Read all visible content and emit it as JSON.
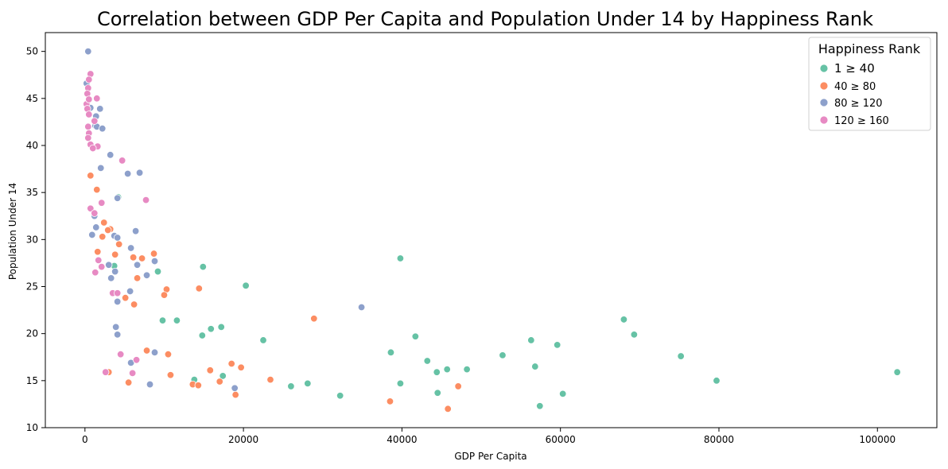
{
  "chart_data": {
    "type": "scatter",
    "title": "Correlation between GDP Per Capita and Population Under 14 by Happiness Rank",
    "xlabel": "GDP Per Capita",
    "ylabel": "Population Under 14",
    "xlim": [
      -5000,
      107500
    ],
    "ylim": [
      10,
      52
    ],
    "xticks": [
      0,
      20000,
      40000,
      60000,
      80000,
      100000
    ],
    "xtick_labels": [
      "0",
      "20000",
      "40000",
      "60000",
      "80000",
      "100000"
    ],
    "yticks": [
      10,
      15,
      20,
      25,
      30,
      35,
      40,
      45,
      50
    ],
    "ytick_labels": [
      "10",
      "15",
      "20",
      "25",
      "30",
      "35",
      "40",
      "45",
      "50"
    ],
    "grid": false,
    "legend": {
      "title": "Happiness Rank",
      "placement": "top-right"
    },
    "series": [
      {
        "name": "1 ≥ 40",
        "color": "#66c2a5",
        "points": [
          [
            102500,
            15.9
          ],
          [
            79700,
            15.0
          ],
          [
            75200,
            17.6
          ],
          [
            69300,
            19.9
          ],
          [
            68000,
            21.5
          ],
          [
            60300,
            13.6
          ],
          [
            59600,
            18.8
          ],
          [
            57400,
            12.3
          ],
          [
            56800,
            16.5
          ],
          [
            56300,
            19.3
          ],
          [
            52700,
            17.7
          ],
          [
            48200,
            16.2
          ],
          [
            45700,
            16.2
          ],
          [
            44500,
            13.7
          ],
          [
            44400,
            15.9
          ],
          [
            43200,
            17.1
          ],
          [
            41700,
            19.7
          ],
          [
            39800,
            28.0
          ],
          [
            39800,
            14.7
          ],
          [
            38600,
            18.0
          ],
          [
            32200,
            13.4
          ],
          [
            28100,
            14.7
          ],
          [
            26000,
            14.4
          ],
          [
            22500,
            19.3
          ],
          [
            20300,
            25.1
          ],
          [
            17200,
            20.7
          ],
          [
            17400,
            15.5
          ],
          [
            15900,
            20.5
          ],
          [
            14900,
            27.1
          ],
          [
            14800,
            19.8
          ],
          [
            13800,
            15.1
          ],
          [
            11600,
            21.4
          ],
          [
            9800,
            21.4
          ],
          [
            9200,
            26.6
          ],
          [
            4200,
            34.5
          ],
          [
            3700,
            27.2
          ]
        ]
      },
      {
        "name": "40 ≥ 80",
        "color": "#fc8d62",
        "points": [
          [
            700,
            36.8
          ],
          [
            1500,
            35.3
          ],
          [
            2400,
            31.8
          ],
          [
            3200,
            31.1
          ],
          [
            2900,
            31.0
          ],
          [
            2200,
            30.3
          ],
          [
            4300,
            29.5
          ],
          [
            1600,
            28.7
          ],
          [
            3800,
            28.4
          ],
          [
            8700,
            28.5
          ],
          [
            6100,
            28.1
          ],
          [
            7200,
            28.0
          ],
          [
            6600,
            25.9
          ],
          [
            14400,
            24.8
          ],
          [
            10300,
            24.7
          ],
          [
            10000,
            24.1
          ],
          [
            5100,
            23.8
          ],
          [
            6200,
            23.1
          ],
          [
            28900,
            21.6
          ],
          [
            7800,
            18.2
          ],
          [
            10500,
            17.8
          ],
          [
            18500,
            16.8
          ],
          [
            19700,
            16.4
          ],
          [
            15800,
            16.1
          ],
          [
            3000,
            15.9
          ],
          [
            10800,
            15.6
          ],
          [
            23400,
            15.1
          ],
          [
            17000,
            14.9
          ],
          [
            5500,
            14.8
          ],
          [
            13600,
            14.6
          ],
          [
            14300,
            14.5
          ],
          [
            47100,
            14.4
          ],
          [
            19000,
            13.5
          ],
          [
            38500,
            12.8
          ],
          [
            45800,
            12.0
          ]
        ]
      },
      {
        "name": "80 ≥ 120",
        "color": "#8da0cb",
        "points": [
          [
            400,
            50.0
          ],
          [
            200,
            46.6
          ],
          [
            1400,
            43.1
          ],
          [
            1900,
            43.9
          ],
          [
            1300,
            42.1
          ],
          [
            1500,
            42.0
          ],
          [
            2200,
            41.8
          ],
          [
            3200,
            39.0
          ],
          [
            2000,
            37.6
          ],
          [
            5400,
            37.0
          ],
          [
            6900,
            37.1
          ],
          [
            4100,
            34.4
          ],
          [
            1200,
            32.5
          ],
          [
            1400,
            31.3
          ],
          [
            900,
            30.5
          ],
          [
            3700,
            30.4
          ],
          [
            4100,
            30.2
          ],
          [
            6400,
            30.9
          ],
          [
            5800,
            29.1
          ],
          [
            6600,
            27.3
          ],
          [
            3000,
            27.3
          ],
          [
            8800,
            27.7
          ],
          [
            3800,
            26.6
          ],
          [
            7800,
            26.2
          ],
          [
            3300,
            25.9
          ],
          [
            5700,
            24.5
          ],
          [
            4100,
            23.4
          ],
          [
            34900,
            22.8
          ],
          [
            3900,
            20.7
          ],
          [
            4100,
            19.9
          ],
          [
            8800,
            18.0
          ],
          [
            5800,
            16.9
          ],
          [
            8200,
            14.6
          ],
          [
            18900,
            14.2
          ],
          [
            700,
            44.0
          ]
        ]
      },
      {
        "name": "120 ≥ 160",
        "color": "#e78ac3",
        "points": [
          [
            700,
            47.6
          ],
          [
            500,
            47.0
          ],
          [
            400,
            46.1
          ],
          [
            300,
            45.5
          ],
          [
            1500,
            45.0
          ],
          [
            200,
            44.4
          ],
          [
            500,
            44.9
          ],
          [
            300,
            43.9
          ],
          [
            500,
            43.3
          ],
          [
            1200,
            42.6
          ],
          [
            400,
            42.0
          ],
          [
            500,
            41.3
          ],
          [
            400,
            40.8
          ],
          [
            700,
            40.1
          ],
          [
            1600,
            39.9
          ],
          [
            1000,
            39.7
          ],
          [
            4700,
            38.4
          ],
          [
            7700,
            34.2
          ],
          [
            2100,
            33.9
          ],
          [
            700,
            33.3
          ],
          [
            1200,
            32.8
          ],
          [
            1700,
            27.8
          ],
          [
            2100,
            27.1
          ],
          [
            1300,
            26.5
          ],
          [
            3500,
            24.3
          ],
          [
            4100,
            24.3
          ],
          [
            4500,
            17.8
          ],
          [
            6500,
            17.2
          ],
          [
            2600,
            15.9
          ],
          [
            6000,
            15.8
          ]
        ]
      }
    ]
  }
}
